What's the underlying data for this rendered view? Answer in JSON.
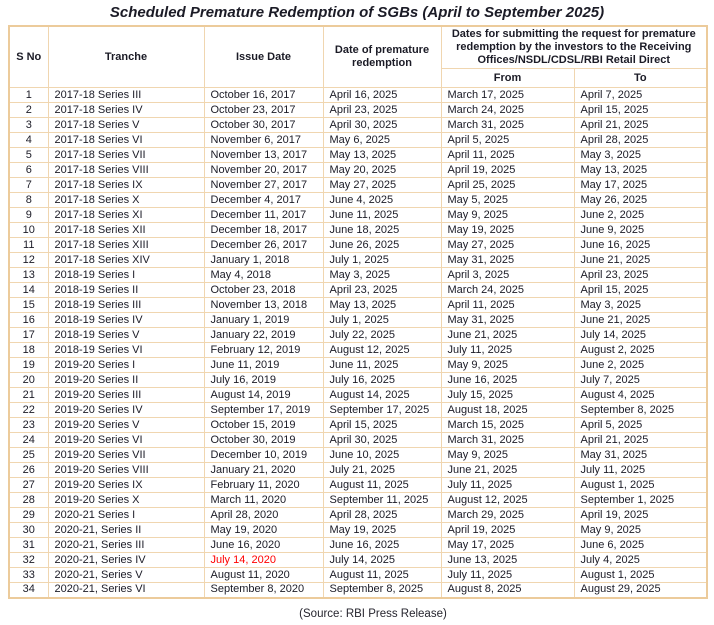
{
  "title": "Scheduled Premature Redemption of SGBs (April to September 2025)",
  "footer": "(Source: RBI Press Release)",
  "colors": {
    "text": "#1b1b26",
    "alert": "#ff0000",
    "border_outer": "#eccb9b",
    "border_inner": "#f0d6b0",
    "footer_text": "#26252e",
    "background": "#ffffff"
  },
  "table": {
    "headers": {
      "s_no": "S No",
      "tranche": "Tranche",
      "issue_date": "Issue Date",
      "redemption_date": "Date of premature redemption",
      "submission_group": "Dates for submitting the request for premature redemption by the investors to the Receiving Offices/NSDL/CDSL/RBI Retail Direct",
      "from": "From",
      "to": "To"
    },
    "rows": [
      {
        "s_no": "1",
        "tranche": "2017-18 Series III",
        "issue_date": "October 16, 2017",
        "issue_date_red": false,
        "redemption_date": "April 16, 2025",
        "from": "March 17, 2025",
        "to": "April 7, 2025"
      },
      {
        "s_no": "2",
        "tranche": "2017-18 Series IV",
        "issue_date": "October 23, 2017",
        "issue_date_red": false,
        "redemption_date": "April 23, 2025",
        "from": "March 24, 2025",
        "to": "April 15, 2025"
      },
      {
        "s_no": "3",
        "tranche": "2017-18 Series V",
        "issue_date": "October 30, 2017",
        "issue_date_red": false,
        "redemption_date": "April 30, 2025",
        "from": "March 31, 2025",
        "to": "April 21, 2025"
      },
      {
        "s_no": "4",
        "tranche": "2017-18 Series VI",
        "issue_date": "November 6, 2017",
        "issue_date_red": false,
        "redemption_date": "May 6, 2025",
        "from": "April 5, 2025",
        "to": "April 28, 2025"
      },
      {
        "s_no": "5",
        "tranche": "2017-18 Series VII",
        "issue_date": "November 13, 2017",
        "issue_date_red": false,
        "redemption_date": "May 13, 2025",
        "from": "April 11, 2025",
        "to": "May 3, 2025"
      },
      {
        "s_no": "6",
        "tranche": "2017-18 Series VIII",
        "issue_date": "November 20, 2017",
        "issue_date_red": false,
        "redemption_date": "May 20, 2025",
        "from": "April 19, 2025",
        "to": "May 13, 2025"
      },
      {
        "s_no": "7",
        "tranche": "2017-18 Series IX",
        "issue_date": "November 27, 2017",
        "issue_date_red": false,
        "redemption_date": "May 27, 2025",
        "from": "April 25, 2025",
        "to": "May 17, 2025"
      },
      {
        "s_no": "8",
        "tranche": "2017-18 Series X",
        "issue_date": "December 4, 2017",
        "issue_date_red": false,
        "redemption_date": "June 4, 2025",
        "from": "May 5, 2025",
        "to": "May 26, 2025"
      },
      {
        "s_no": "9",
        "tranche": "2017-18 Series XI",
        "issue_date": "December 11, 2017",
        "issue_date_red": false,
        "redemption_date": "June 11, 2025",
        "from": "May 9, 2025",
        "to": "June 2, 2025"
      },
      {
        "s_no": "10",
        "tranche": "2017-18 Series XII",
        "issue_date": "December 18, 2017",
        "issue_date_red": false,
        "redemption_date": "June 18, 2025",
        "from": "May 19, 2025",
        "to": "June 9, 2025"
      },
      {
        "s_no": "11",
        "tranche": "2017-18 Series XIII",
        "issue_date": "December 26, 2017",
        "issue_date_red": false,
        "redemption_date": "June 26, 2025",
        "from": "May 27, 2025",
        "to": "June 16, 2025"
      },
      {
        "s_no": "12",
        "tranche": "2017-18 Series XIV",
        "issue_date": "January 1, 2018",
        "issue_date_red": false,
        "redemption_date": "July 1, 2025",
        "from": "May 31, 2025",
        "to": "June 21, 2025"
      },
      {
        "s_no": "13",
        "tranche": "2018-19 Series I",
        "issue_date": "May 4, 2018",
        "issue_date_red": false,
        "redemption_date": "May 3, 2025",
        "from": "April 3, 2025",
        "to": "April 23, 2025"
      },
      {
        "s_no": "14",
        "tranche": "2018-19 Series II",
        "issue_date": "October 23, 2018",
        "issue_date_red": false,
        "redemption_date": "April 23, 2025",
        "from": "March 24, 2025",
        "to": "April 15, 2025"
      },
      {
        "s_no": "15",
        "tranche": "2018-19 Series III",
        "issue_date": "November 13, 2018",
        "issue_date_red": false,
        "redemption_date": "May 13, 2025",
        "from": "April 11, 2025",
        "to": "May 3, 2025"
      },
      {
        "s_no": "16",
        "tranche": "2018-19 Series IV",
        "issue_date": "January 1, 2019",
        "issue_date_red": false,
        "redemption_date": "July 1, 2025",
        "from": "May 31, 2025",
        "to": "June 21, 2025"
      },
      {
        "s_no": "17",
        "tranche": "2018-19 Series V",
        "issue_date": "January 22, 2019",
        "issue_date_red": false,
        "redemption_date": "July 22, 2025",
        "from": "June 21, 2025",
        "to": "July 14, 2025"
      },
      {
        "s_no": "18",
        "tranche": "2018-19 Series VI",
        "issue_date": "February 12, 2019",
        "issue_date_red": false,
        "redemption_date": "August 12, 2025",
        "from": "July 11, 2025",
        "to": "August 2, 2025"
      },
      {
        "s_no": "19",
        "tranche": "2019-20 Series I",
        "issue_date": "June 11, 2019",
        "issue_date_red": false,
        "redemption_date": "June 11, 2025",
        "from": "May 9, 2025",
        "to": "June 2, 2025"
      },
      {
        "s_no": "20",
        "tranche": "2019-20 Series II",
        "issue_date": "July 16, 2019",
        "issue_date_red": false,
        "redemption_date": "July 16, 2025",
        "from": "June 16, 2025",
        "to": "July 7, 2025"
      },
      {
        "s_no": "21",
        "tranche": "2019-20 Series III",
        "issue_date": "August 14, 2019",
        "issue_date_red": false,
        "redemption_date": "August 14, 2025",
        "from": "July 15, 2025",
        "to": "August 4, 2025"
      },
      {
        "s_no": "22",
        "tranche": "2019-20 Series IV",
        "issue_date": "September 17, 2019",
        "issue_date_red": false,
        "redemption_date": "September 17, 2025",
        "from": "August 18, 2025",
        "to": "September 8, 2025"
      },
      {
        "s_no": "23",
        "tranche": "2019-20 Series V",
        "issue_date": "October 15, 2019",
        "issue_date_red": false,
        "redemption_date": "April 15, 2025",
        "from": "March 15, 2025",
        "to": "April 5, 2025"
      },
      {
        "s_no": "24",
        "tranche": "2019-20 Series VI",
        "issue_date": "October 30, 2019",
        "issue_date_red": false,
        "redemption_date": "April 30, 2025",
        "from": "March 31, 2025",
        "to": "April 21, 2025"
      },
      {
        "s_no": "25",
        "tranche": "2019-20 Series VII",
        "issue_date": "December 10, 2019",
        "issue_date_red": false,
        "redemption_date": "June 10, 2025",
        "from": "May 9, 2025",
        "to": "May 31, 2025"
      },
      {
        "s_no": "26",
        "tranche": "2019-20 Series VIII",
        "issue_date": "January 21, 2020",
        "issue_date_red": false,
        "redemption_date": "July 21, 2025",
        "from": "June 21, 2025",
        "to": "July 11, 2025"
      },
      {
        "s_no": "27",
        "tranche": "2019-20 Series IX",
        "issue_date": "February 11, 2020",
        "issue_date_red": false,
        "redemption_date": "August 11, 2025",
        "from": "July 11, 2025",
        "to": "August 1, 2025"
      },
      {
        "s_no": "28",
        "tranche": "2019-20 Series X",
        "issue_date": "March 11, 2020",
        "issue_date_red": false,
        "redemption_date": "September 11, 2025",
        "from": "August 12, 2025",
        "to": "September 1, 2025"
      },
      {
        "s_no": "29",
        "tranche": "2020-21 Series I",
        "issue_date": "April 28, 2020",
        "issue_date_red": false,
        "redemption_date": "April 28, 2025",
        "from": "March 29, 2025",
        "to": "April 19, 2025"
      },
      {
        "s_no": "30",
        "tranche": "2020-21, Series II",
        "issue_date": "May 19, 2020",
        "issue_date_red": false,
        "redemption_date": "May 19, 2025",
        "from": "April 19, 2025",
        "to": "May 9, 2025"
      },
      {
        "s_no": "31",
        "tranche": "2020-21, Series III",
        "issue_date": "June 16, 2020",
        "issue_date_red": false,
        "redemption_date": "June 16, 2025",
        "from": "May 17, 2025",
        "to": "June 6, 2025"
      },
      {
        "s_no": "32",
        "tranche": "2020-21, Series IV",
        "issue_date": "July 14, 2020",
        "issue_date_red": true,
        "redemption_date": "July 14, 2025",
        "from": "June 13, 2025",
        "to": "July 4, 2025"
      },
      {
        "s_no": "33",
        "tranche": "2020-21, Series V",
        "issue_date": "August 11, 2020",
        "issue_date_red": false,
        "redemption_date": "August 11, 2025",
        "from": "July 11, 2025",
        "to": "August 1, 2025"
      },
      {
        "s_no": "34",
        "tranche": "2020-21, Series VI",
        "issue_date": "September 8, 2020",
        "issue_date_red": false,
        "redemption_date": "September 8, 2025",
        "from": "August 8, 2025",
        "to": "August 29, 2025"
      }
    ]
  }
}
